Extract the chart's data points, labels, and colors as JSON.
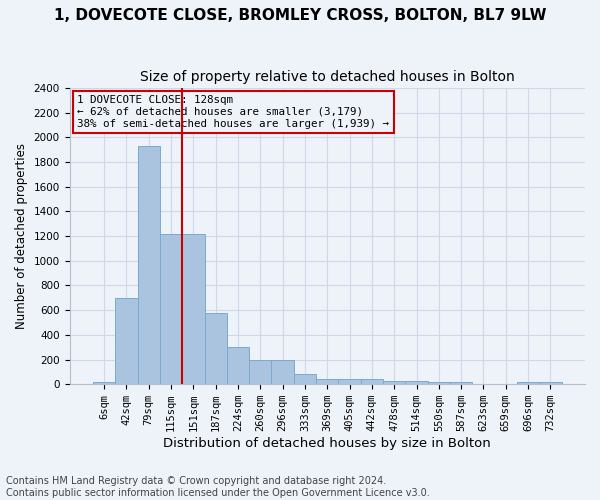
{
  "title_line1": "1, DOVECOTE CLOSE, BROMLEY CROSS, BOLTON, BL7 9LW",
  "title_line2": "Size of property relative to detached houses in Bolton",
  "xlabel": "Distribution of detached houses by size in Bolton",
  "ylabel": "Number of detached properties",
  "bar_values": [
    15,
    700,
    1930,
    1220,
    1220,
    575,
    305,
    200,
    200,
    80,
    45,
    40,
    40,
    30,
    30,
    20,
    20,
    5,
    5,
    20,
    15
  ],
  "bar_labels": [
    "6sqm",
    "42sqm",
    "79sqm",
    "115sqm",
    "151sqm",
    "187sqm",
    "224sqm",
    "260sqm",
    "296sqm",
    "333sqm",
    "369sqm",
    "405sqm",
    "442sqm",
    "478sqm",
    "514sqm",
    "550sqm",
    "587sqm",
    "623sqm",
    "659sqm",
    "696sqm",
    "732sqm"
  ],
  "bar_color": "#aac4e0",
  "bar_edge_color": "#7aaad0",
  "grid_color": "#d0d8e8",
  "background_color": "#eef2f9",
  "vline_x": 3.5,
  "vline_color": "#cc0000",
  "annotation_text": "1 DOVECOTE CLOSE: 128sqm\n← 62% of detached houses are smaller (3,179)\n38% of semi-detached houses are larger (1,939) →",
  "annotation_box_color": "#cc0000",
  "ylim": [
    0,
    2400
  ],
  "yticks": [
    0,
    200,
    400,
    600,
    800,
    1000,
    1200,
    1400,
    1600,
    1800,
    2000,
    2200,
    2400
  ],
  "title_fontsize": 11,
  "subtitle_fontsize": 10,
  "xlabel_fontsize": 9.5,
  "ylabel_fontsize": 8.5,
  "tick_fontsize": 7.5,
  "footer_fontsize": 7.0,
  "footer_line1": "Contains HM Land Registry data © Crown copyright and database right 2024.",
  "footer_line2": "Contains public sector information licensed under the Open Government Licence v3.0."
}
